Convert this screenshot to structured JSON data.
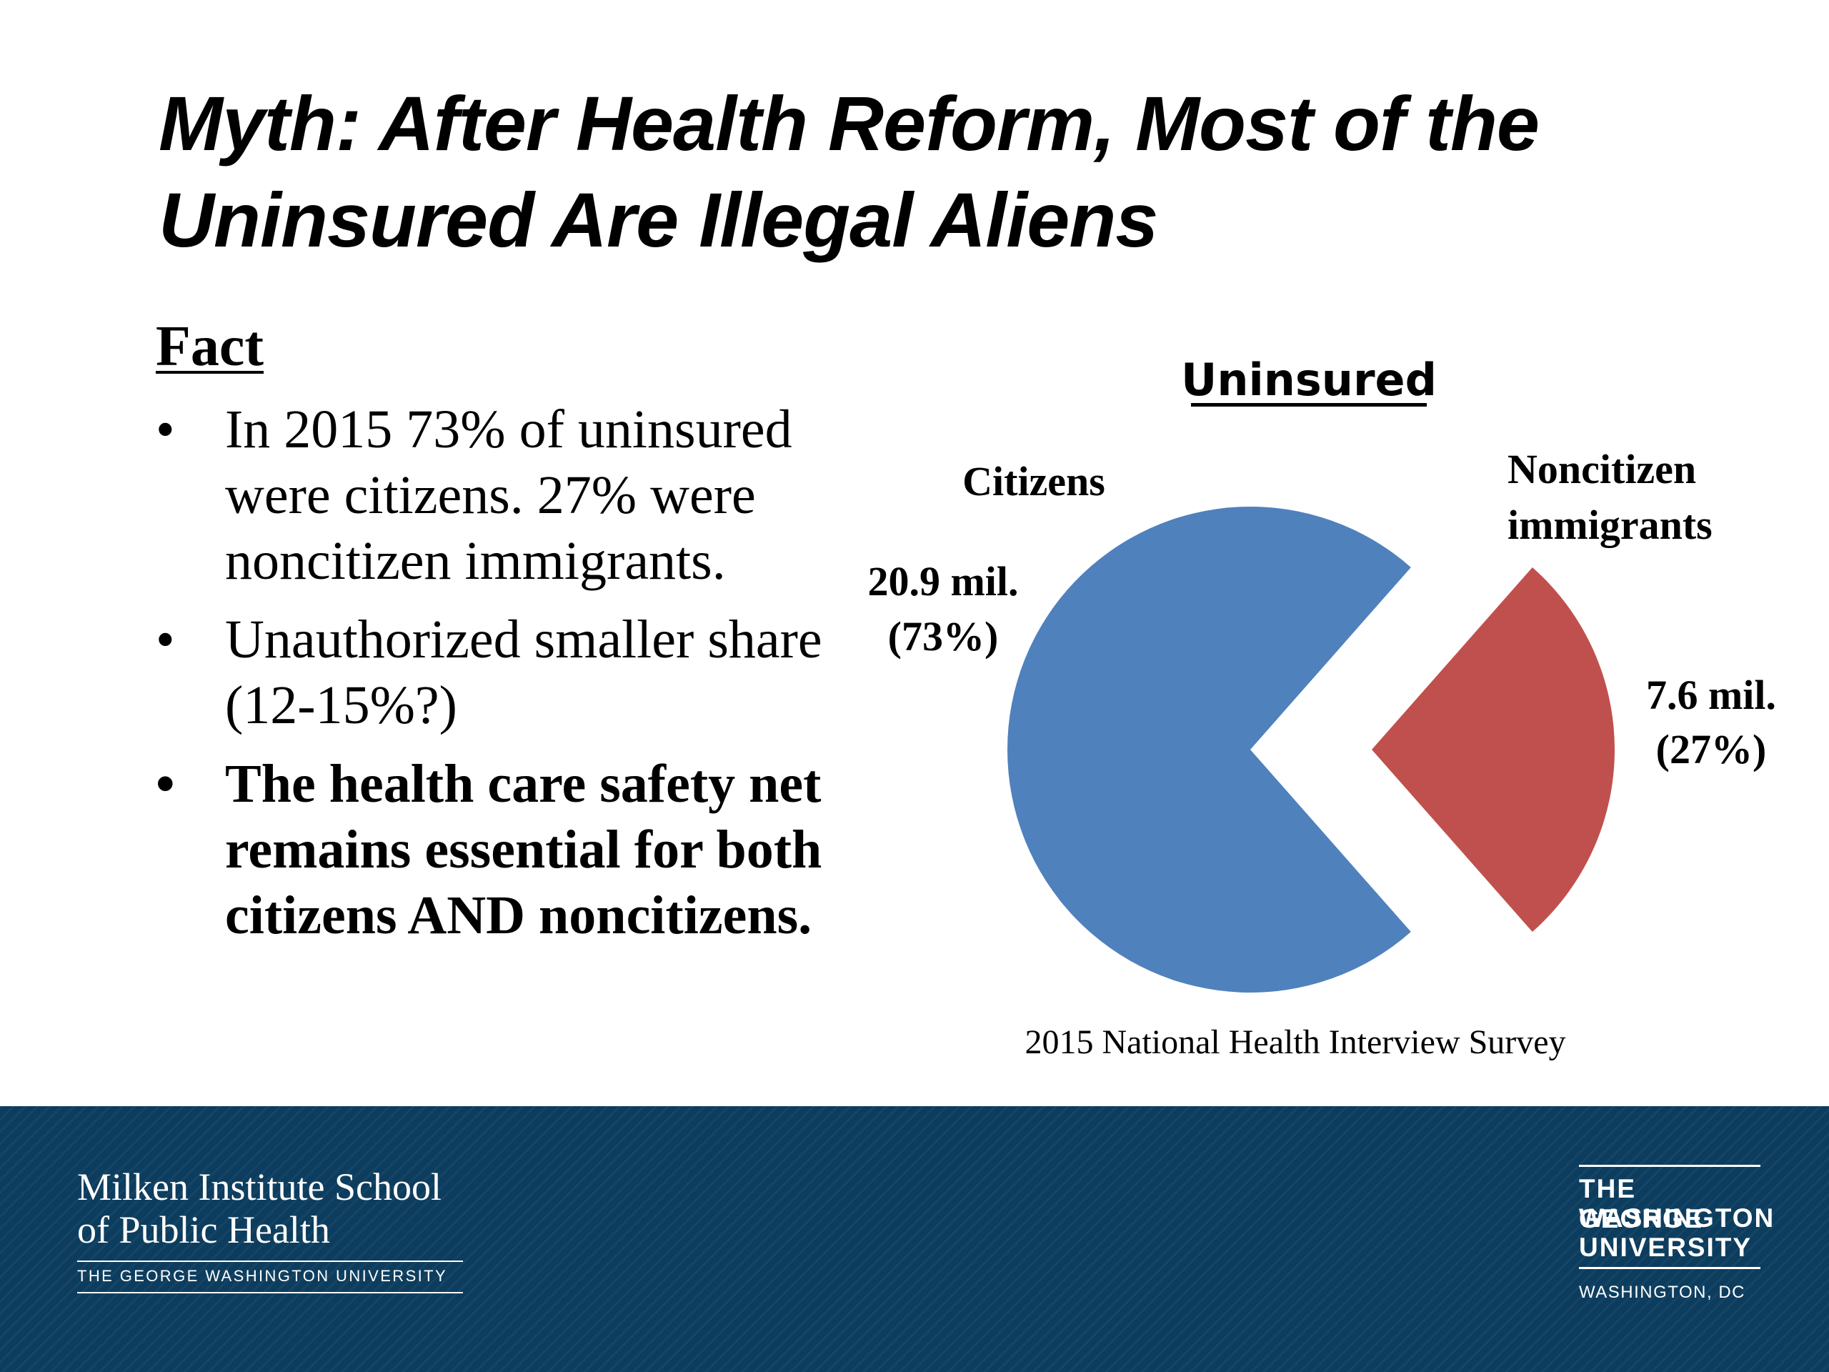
{
  "slide": {
    "title_line1": "Myth: After Health Reform, Most of the",
    "title_line2": "Uninsured Are Illegal Aliens",
    "fact_heading": "Fact",
    "bullets": [
      {
        "text": "In 2015 73% of uninsured were citizens.  27% were noncitizen immigrants.",
        "bold": false
      },
      {
        "text": "Unauthorized smaller share (12-15%?)",
        "bold": false
      },
      {
        "text": "The health care safety net remains essential for both citizens AND noncitizens.",
        "bold": true
      }
    ],
    "bullet_symbol": "•"
  },
  "chart_data": {
    "type": "pie",
    "title": "Uninsured",
    "source": "2015 National Health Interview Survey",
    "slices": [
      {
        "label_line1": "Citizens",
        "label_line2": "",
        "value_millions": 20.9,
        "percent": 73,
        "value_text": "20.9 mil.",
        "percent_text": "(73%)",
        "color": "#4f81bd",
        "exploded": false
      },
      {
        "label_line1": "Noncitizen",
        "label_line2": "immigrants",
        "value_millions": 7.6,
        "percent": 27,
        "value_text": "7.6 mil.",
        "percent_text": "(27%)",
        "color": "#c0504d",
        "exploded": true
      }
    ]
  },
  "footer": {
    "school_line1": "Milken Institute School",
    "school_line2": "of Public Health",
    "school_sub": "THE GEORGE WASHINGTON UNIVERSITY",
    "gw_line1": "THE GEORGE",
    "gw_line2": "WASHINGTON",
    "gw_line3": "UNIVERSITY",
    "gw_sub": "WASHINGTON, DC",
    "background_color": "#0d3d5e"
  }
}
